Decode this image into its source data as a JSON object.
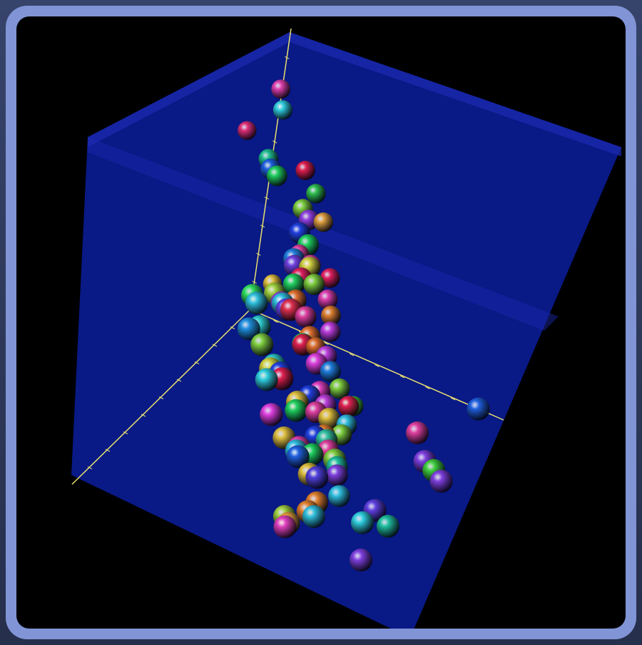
{
  "viewer": {
    "background_color": "#000000",
    "frame_color": "#8094d6",
    "box_face_color": "#0a1a8c",
    "box_edge_color": "#1c2bb0",
    "axis_color": "#e8e070"
  },
  "chart_data": {
    "type": "scatter",
    "projection": "3d-perspective",
    "title": "",
    "xlabel": "",
    "ylabel": "",
    "zlabel": "",
    "axes_visible": [
      "x",
      "y",
      "z"
    ],
    "grid": false,
    "legend": "none",
    "note": "",
    "points": [
      {
        "x": 0.42,
        "y": 0.13,
        "z": 0.95,
        "color": "#e0307a"
      },
      {
        "x": 0.08,
        "y": 0.04,
        "z": 0.85,
        "color": "#e040b0"
      },
      {
        "x": 0.1,
        "y": 0.07,
        "z": 0.8,
        "color": "#30d0e0"
      },
      {
        "x": 0.3,
        "y": 0.3,
        "z": 0.8,
        "color": "#e02050"
      },
      {
        "x": 0.35,
        "y": 0.38,
        "z": 0.78,
        "color": "#30c050"
      },
      {
        "x": 0.45,
        "y": 0.48,
        "z": 0.78,
        "color": "#e0a040"
      },
      {
        "x": 0.7,
        "y": 0.55,
        "z": 0.85,
        "color": "#e040a0"
      },
      {
        "x": 0.9,
        "y": 0.58,
        "z": 0.88,
        "color": "#e0c040"
      },
      {
        "x": 0.2,
        "y": 0.1,
        "z": 0.7,
        "color": "#20c090"
      },
      {
        "x": 0.98,
        "y": 0.82,
        "z": 0.8,
        "color": "#e07030"
      },
      {
        "x": 0.28,
        "y": 0.3,
        "z": 0.65,
        "color": "#80d040"
      },
      {
        "x": 0.6,
        "y": 0.62,
        "z": 0.73,
        "color": "#e02060"
      },
      {
        "x": 0.63,
        "y": 0.64,
        "z": 0.68,
        "color": "#e040b0"
      },
      {
        "x": 0.7,
        "y": 0.7,
        "z": 0.69,
        "color": "#e08030"
      },
      {
        "x": 0.23,
        "y": 0.3,
        "z": 0.58,
        "color": "#9040e0"
      },
      {
        "x": 0.37,
        "y": 0.41,
        "z": 0.55,
        "color": "#e040b0"
      },
      {
        "x": 0.0,
        "y": 0.0,
        "z": 0.5,
        "color": "#2060e0"
      },
      {
        "x": 0.04,
        "y": 0.05,
        "z": 0.52,
        "color": "#20d060"
      },
      {
        "x": 0.6,
        "y": 0.65,
        "z": 0.55,
        "color": "#c040e0"
      },
      {
        "x": 0.92,
        "y": 0.94,
        "z": 0.6,
        "color": "#2090e0"
      },
      {
        "x": 0.96,
        "y": 0.98,
        "z": 0.64,
        "color": "#40d040"
      },
      {
        "x": 0.18,
        "y": 0.3,
        "z": 0.38,
        "color": "#d0d040"
      },
      {
        "x": 0.24,
        "y": 0.36,
        "z": 0.38,
        "color": "#80d040"
      },
      {
        "x": 0.05,
        "y": 0.17,
        "z": 0.37,
        "color": "#2040e0"
      },
      {
        "x": 0.75,
        "y": 0.8,
        "z": 0.5,
        "color": "#80d040"
      },
      {
        "x": 0.78,
        "y": 0.86,
        "z": 0.48,
        "color": "#e02050"
      },
      {
        "x": 0.65,
        "y": 0.7,
        "z": 0.46,
        "color": "#2080e0"
      },
      {
        "x": 0.55,
        "y": 0.62,
        "z": 0.42,
        "color": "#c040e0"
      },
      {
        "x": 0.88,
        "y": 0.92,
        "z": 0.5,
        "color": "#30c0e0"
      },
      {
        "x": 0.87,
        "y": 0.9,
        "z": 0.45,
        "color": "#80d040"
      },
      {
        "x": 0.0,
        "y": 0.18,
        "z": 0.3,
        "color": "#20d060"
      },
      {
        "x": 0.08,
        "y": 0.18,
        "z": 0.3,
        "color": "#2080e0"
      },
      {
        "x": 0.14,
        "y": 0.22,
        "z": 0.33,
        "color": "#7040e0"
      },
      {
        "x": 0.18,
        "y": 0.25,
        "z": 0.3,
        "color": "#20d060"
      },
      {
        "x": 0.24,
        "y": 0.3,
        "z": 0.3,
        "color": "#e07030"
      },
      {
        "x": 0.3,
        "y": 0.38,
        "z": 0.31,
        "color": "#e040a0"
      },
      {
        "x": 0.36,
        "y": 0.44,
        "z": 0.3,
        "color": "#e07030"
      },
      {
        "x": 0.4,
        "y": 0.44,
        "z": 0.3,
        "color": "#20d060"
      },
      {
        "x": 0.38,
        "y": 0.43,
        "z": 0.28,
        "color": "#e02050"
      },
      {
        "x": 0.05,
        "y": 0.2,
        "z": 0.22,
        "color": "#e02060"
      },
      {
        "x": 0.36,
        "y": 0.48,
        "z": 0.22,
        "color": "#e040e0"
      },
      {
        "x": 0.56,
        "y": 0.62,
        "z": 0.3,
        "color": "#e040c0"
      },
      {
        "x": 0.58,
        "y": 0.66,
        "z": 0.28,
        "color": "#c040e0"
      },
      {
        "x": 0.65,
        "y": 0.72,
        "z": 0.3,
        "color": "#e0c040"
      },
      {
        "x": 0.68,
        "y": 0.74,
        "z": 0.25,
        "color": "#30c0a0"
      },
      {
        "x": 0.73,
        "y": 0.78,
        "z": 0.26,
        "color": "#e040a0"
      },
      {
        "x": 0.78,
        "y": 0.85,
        "z": 0.26,
        "color": "#20c0a0"
      },
      {
        "x": 0.86,
        "y": 0.9,
        "z": 0.3,
        "color": "#8040e0"
      },
      {
        "x": 0.88,
        "y": 0.93,
        "z": 0.25,
        "color": "#30c0e0"
      },
      {
        "x": 0.6,
        "y": 0.64,
        "z": 0.26,
        "color": "#e040a0"
      },
      {
        "x": 0.63,
        "y": 0.7,
        "z": 0.22,
        "color": "#e08030"
      },
      {
        "x": 0.5,
        "y": 0.55,
        "z": 0.22,
        "color": "#2040e0"
      },
      {
        "x": 0.19,
        "y": 0.19,
        "z": 0.25,
        "color": "#a0d040"
      },
      {
        "x": 0.12,
        "y": 0.22,
        "z": 0.16,
        "color": "#e03050"
      },
      {
        "x": 0.12,
        "y": 0.18,
        "z": 0.17,
        "color": "#9040e0"
      },
      {
        "x": 0.08,
        "y": 0.18,
        "z": 0.12,
        "color": "#6040e0"
      },
      {
        "x": 0.04,
        "y": 0.14,
        "z": 0.1,
        "color": "#30c0e0"
      },
      {
        "x": 0.0,
        "y": 0.0,
        "z": 0.05,
        "color": "#30e060"
      },
      {
        "x": 0.0,
        "y": 0.02,
        "z": 0.03,
        "color": "#30c0e0"
      },
      {
        "x": 0.1,
        "y": 0.1,
        "z": 0.04,
        "color": "#30d0d0"
      },
      {
        "x": 0.12,
        "y": 0.13,
        "z": 0.0,
        "color": "#80d040"
      },
      {
        "x": 0.2,
        "y": 0.22,
        "z": 0.0,
        "color": "#d0d040"
      },
      {
        "x": 0.25,
        "y": 0.24,
        "z": 0.0,
        "color": "#30d0e0"
      },
      {
        "x": 0.18,
        "y": 0.22,
        "z": 0.0,
        "color": "#30d0d0"
      },
      {
        "x": 0.2,
        "y": 0.26,
        "z": 0.0,
        "color": "#2040e0"
      },
      {
        "x": 0.22,
        "y": 0.28,
        "z": 0.0,
        "color": "#e02050"
      },
      {
        "x": 0.38,
        "y": 0.44,
        "z": 0.08,
        "color": "#e0c040"
      },
      {
        "x": 0.38,
        "y": 0.44,
        "z": 0.05,
        "color": "#20d060"
      },
      {
        "x": 0.58,
        "y": 0.64,
        "z": 0.16,
        "color": "#2040e0"
      },
      {
        "x": 0.62,
        "y": 0.66,
        "z": 0.13,
        "color": "#20d060"
      },
      {
        "x": 0.52,
        "y": 0.55,
        "z": 0.05,
        "color": "#e040b0"
      },
      {
        "x": 0.5,
        "y": 0.54,
        "z": 0.0,
        "color": "#2060e0"
      },
      {
        "x": 0.48,
        "y": 0.52,
        "z": 0.0,
        "color": "#30c0e0"
      },
      {
        "x": 0.08,
        "y": 0.05,
        "z": 0.0,
        "color": "#2090e0"
      },
      {
        "x": 0.45,
        "y": 0.45,
        "z": 0.0,
        "color": "#e0c040"
      },
      {
        "x": 0.38,
        "y": 0.35,
        "z": 0.0,
        "color": "#e040e0"
      },
      {
        "x": 0.78,
        "y": 0.7,
        "z": 0.0,
        "color": "#e0a040"
      },
      {
        "x": 0.76,
        "y": 0.67,
        "z": 0.0,
        "color": "#a0d040"
      },
      {
        "x": 0.8,
        "y": 0.7,
        "z": 0.0,
        "color": "#e040c0"
      },
      {
        "x": 0.0,
        "y": 0.9,
        "z": 0.0,
        "color": "#2060e0"
      },
      {
        "x": 0.2,
        "y": 0.8,
        "z": 0.0,
        "color": "#e040a0"
      },
      {
        "x": 0.3,
        "y": 0.9,
        "z": 0.0,
        "color": "#8040e0"
      },
      {
        "x": 0.32,
        "y": 0.95,
        "z": 0.0,
        "color": "#40d040"
      },
      {
        "x": 0.45,
        "y": 0.65,
        "z": 0.0,
        "color": "#80d040"
      },
      {
        "x": 0.55,
        "y": 0.62,
        "z": 0.0,
        "color": "#e0c040"
      },
      {
        "x": 0.55,
        "y": 0.65,
        "z": 0.0,
        "color": "#5040e0"
      },
      {
        "x": 0.65,
        "y": 0.72,
        "z": 0.0,
        "color": "#e08030"
      },
      {
        "x": 0.7,
        "y": 0.72,
        "z": 0.0,
        "color": "#e08030"
      },
      {
        "x": 0.71,
        "y": 0.75,
        "z": 0.0,
        "color": "#30c0e0"
      },
      {
        "x": 0.35,
        "y": 1.0,
        "z": 0.0,
        "color": "#8040e0"
      },
      {
        "x": 0.58,
        "y": 0.9,
        "z": 0.0,
        "color": "#6040e0"
      },
      {
        "x": 0.65,
        "y": 0.9,
        "z": 0.0,
        "color": "#30d0e0"
      },
      {
        "x": 0.62,
        "y": 0.98,
        "z": 0.0,
        "color": "#20c0a0"
      },
      {
        "x": 0.8,
        "y": 1.0,
        "z": 0.0,
        "color": "#8040e0"
      }
    ]
  }
}
